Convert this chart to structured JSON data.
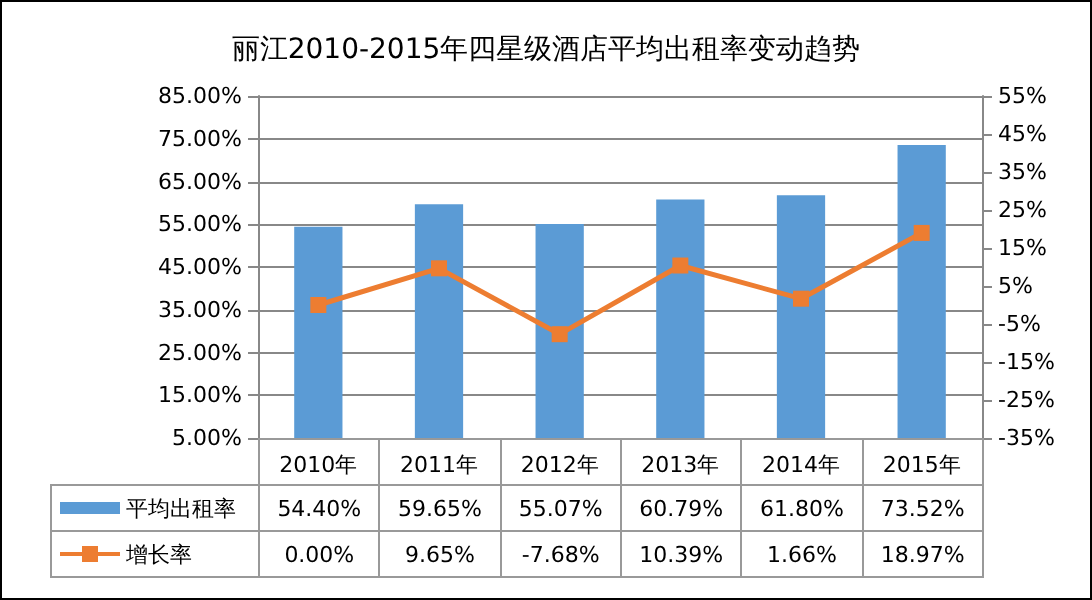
{
  "chart_data": {
    "type": "bar",
    "title": "丽江2010-2015年四星级酒店平均出租率变动趋势",
    "categories": [
      "2010年",
      "2011年",
      "2012年",
      "2013年",
      "2014年",
      "2015年"
    ],
    "series": [
      {
        "name": "平均出租率",
        "color": "#5b9bd5",
        "values": [
          54.4,
          59.65,
          55.07,
          60.79,
          61.8,
          73.52
        ],
        "value_labels": [
          "54.40%",
          "59.65%",
          "55.07%",
          "60.79%",
          "61.80%",
          "73.52%"
        ]
      },
      {
        "name": "增长率",
        "type": "line",
        "axis": "y2",
        "color": "#ed7d31",
        "marker": "square",
        "values": [
          0.0,
          9.65,
          -7.68,
          10.39,
          1.66,
          18.97
        ],
        "value_labels": [
          "0.00%",
          "9.65%",
          "-7.68%",
          "10.39%",
          "1.66%",
          "18.97%"
        ]
      }
    ],
    "ylim": [
      5,
      85
    ],
    "yticks": [
      {
        "value": 5,
        "label": "5.00%"
      },
      {
        "value": 15,
        "label": "15.00%"
      },
      {
        "value": 25,
        "label": "25.00%"
      },
      {
        "value": 35,
        "label": "35.00%"
      },
      {
        "value": 45,
        "label": "45.00%"
      },
      {
        "value": 55,
        "label": "55.00%"
      },
      {
        "value": 65,
        "label": "65.00%"
      },
      {
        "value": 75,
        "label": "75.00%"
      },
      {
        "value": 85,
        "label": "85.00%"
      }
    ],
    "y2lim": [
      -35,
      55
    ],
    "y2ticks": [
      {
        "value": -35,
        "label": "-35%"
      },
      {
        "value": -25,
        "label": "-25%"
      },
      {
        "value": -15,
        "label": "-15%"
      },
      {
        "value": -5,
        "label": "-5%"
      },
      {
        "value": 5,
        "label": "5%"
      },
      {
        "value": 15,
        "label": "15%"
      },
      {
        "value": 25,
        "label": "25%"
      },
      {
        "value": 35,
        "label": "35%"
      },
      {
        "value": 45,
        "label": "45%"
      },
      {
        "value": 55,
        "label": "55%"
      }
    ],
    "grid": "y",
    "legend": "bottom"
  }
}
